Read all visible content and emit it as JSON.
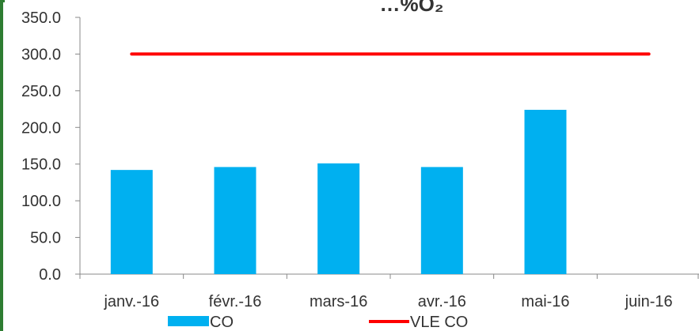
{
  "chart_data": {
    "type": "bar",
    "title": "",
    "title_partial": "…%O₂",
    "categories": [
      "janv.-16",
      "févr.-16",
      "mars-16",
      "avr.-16",
      "mai-16",
      "juin-16"
    ],
    "series": [
      {
        "name": "CO",
        "kind": "bar",
        "color": "#00b0f0",
        "values": [
          142,
          146,
          151,
          146,
          224,
          null
        ]
      },
      {
        "name": "VLE CO",
        "kind": "line",
        "color": "#ff0000",
        "values": [
          300,
          300,
          300,
          300,
          300,
          300
        ]
      }
    ],
    "ylim": [
      0,
      350
    ],
    "yticks": [
      0,
      50,
      100,
      150,
      200,
      250,
      300,
      350
    ],
    "ytick_labels": [
      "0.0",
      "50.0",
      "100.0",
      "150.0",
      "200.0",
      "250.0",
      "300.0",
      "350.0"
    ],
    "xlabel": "",
    "ylabel": "",
    "grid": false,
    "legend_position": "bottom",
    "accent_color": "#2e7d32"
  }
}
